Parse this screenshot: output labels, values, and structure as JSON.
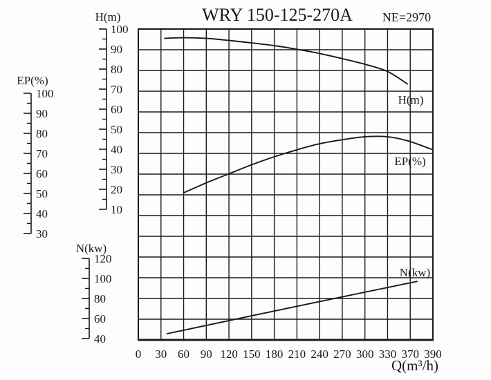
{
  "title": "WRY 150-125-270A",
  "annotation": "NE=2970",
  "colors": {
    "ink": "#1a1a1a",
    "background": "#fdfdfd"
  },
  "chart_data": {
    "type": "line",
    "title": "WRY 150-125-270A",
    "annotation": "NE=2970",
    "grid": true,
    "legend_position": "inline-right",
    "x_axis": {
      "label": "Q(m³/h)",
      "tick_labels": [
        "0",
        "30",
        "60",
        "90",
        "120",
        "150",
        "180",
        "210",
        "240",
        "270",
        "300",
        "330",
        "370",
        "390"
      ],
      "tick_values": [
        0,
        30,
        60,
        90,
        120,
        150,
        180,
        210,
        240,
        270,
        300,
        330,
        370,
        390
      ]
    },
    "y_axes": [
      {
        "id": "H",
        "label": "H(m)",
        "ticks": [
          100,
          90,
          80,
          70,
          60,
          50,
          40,
          30,
          20,
          10
        ]
      },
      {
        "id": "EP",
        "label": "EP(%)",
        "ticks": [
          100,
          90,
          80,
          70,
          60,
          50,
          40,
          30
        ]
      },
      {
        "id": "N",
        "label": "N(kw)",
        "ticks": [
          120,
          100,
          80,
          60,
          40
        ]
      }
    ],
    "series": [
      {
        "name": "H(m)",
        "axis": "H",
        "points": [
          [
            35,
            95.5
          ],
          [
            60,
            95.8
          ],
          [
            90,
            95.5
          ],
          [
            120,
            94.5
          ],
          [
            150,
            93.3
          ],
          [
            180,
            92.0
          ],
          [
            210,
            90.2
          ],
          [
            240,
            88.2
          ],
          [
            270,
            85.7
          ],
          [
            300,
            83.0
          ],
          [
            330,
            79.5
          ],
          [
            365,
            73.5
          ]
        ]
      },
      {
        "name": "EP(%)",
        "axis": "EP",
        "points": [
          [
            60,
            51
          ],
          [
            90,
            56
          ],
          [
            120,
            60.5
          ],
          [
            150,
            65
          ],
          [
            180,
            69
          ],
          [
            210,
            72.5
          ],
          [
            240,
            75.5
          ],
          [
            270,
            77.5
          ],
          [
            300,
            79
          ],
          [
            330,
            79
          ],
          [
            365,
            77
          ],
          [
            390,
            72.5
          ]
        ]
      },
      {
        "name": "N(kw)",
        "axis": "N",
        "points": [
          [
            38,
            46
          ],
          [
            210,
            72.5
          ],
          [
            376,
            96.5
          ]
        ]
      }
    ]
  }
}
